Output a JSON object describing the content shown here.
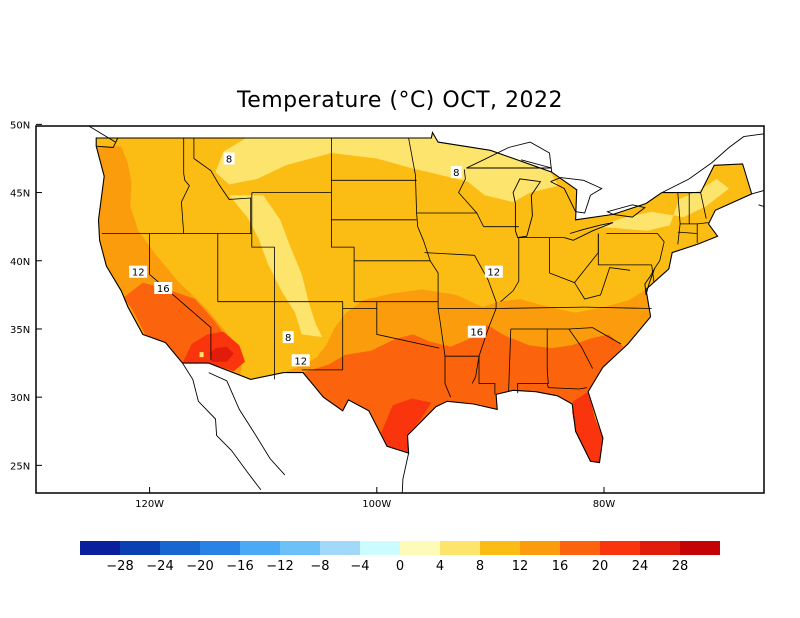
{
  "title": "Temperature (°C) OCT, 2022",
  "lat_ticks": [
    {
      "label": "50N",
      "lat": 50
    },
    {
      "label": "45N",
      "lat": 45
    },
    {
      "label": "40N",
      "lat": 40
    },
    {
      "label": "35N",
      "lat": 35
    },
    {
      "label": "30N",
      "lat": 30
    },
    {
      "label": "25N",
      "lat": 25
    }
  ],
  "lon_ticks": [
    {
      "label": "120W",
      "lon": -120
    },
    {
      "label": "100W",
      "lon": -100
    },
    {
      "label": "80W",
      "lon": -80
    }
  ],
  "contour_labels": [
    {
      "text": "8",
      "lon": -113.0,
      "lat": 47.5
    },
    {
      "text": "8",
      "lon": -93.0,
      "lat": 46.5
    },
    {
      "text": "12",
      "lon": -121.0,
      "lat": 39.2
    },
    {
      "text": "16",
      "lon": -118.8,
      "lat": 38.0
    },
    {
      "text": "12",
      "lon": -89.7,
      "lat": 39.2
    },
    {
      "text": "16",
      "lon": -91.2,
      "lat": 34.8
    },
    {
      "text": "8",
      "lon": -107.8,
      "lat": 34.4
    },
    {
      "text": "12",
      "lon": -106.7,
      "lat": 32.7
    }
  ],
  "colorbar": {
    "colors": [
      "#0a1f9c",
      "#0b3fb4",
      "#1866d0",
      "#2a82e4",
      "#4aaaf5",
      "#6cc2f8",
      "#a2d8f9",
      "#ccfcff",
      "#fefbb8",
      "#fde46c",
      "#fbbc14",
      "#fb9c0c",
      "#fb640c",
      "#fa340c",
      "#e21c0a",
      "#c40404"
    ],
    "labels": [
      "-28",
      "-24",
      "-20",
      "-16",
      "-12",
      "-8",
      "-4",
      "0",
      "4",
      "8",
      "12",
      "16",
      "20",
      "24",
      "28"
    ]
  }
}
